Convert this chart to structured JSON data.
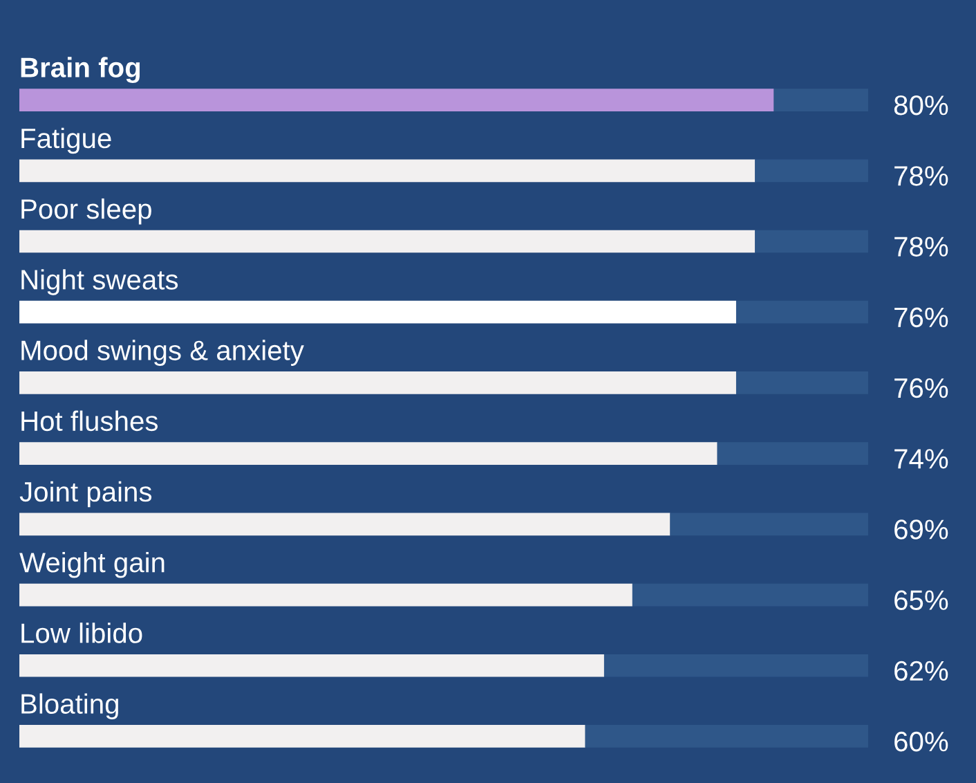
{
  "chart_data": {
    "type": "bar",
    "orientation": "horizontal",
    "stacked": true,
    "categories": [
      "Brain fog",
      "Fatigue",
      "Poor sleep",
      "Night sweats",
      "Mood swings & anxiety",
      "Hot flushes",
      "Joint pains",
      "Weight gain",
      "Low libido",
      "Bloating"
    ],
    "series": [
      {
        "colors": [
          "#b994db",
          "#f2f0f0",
          "#f2f0f0",
          "#ffffff",
          "#f2f0f0",
          "#f2f0f0",
          "#f2f0f0",
          "#f2f0f0",
          "#f2f0f0",
          "#f2f0f0"
        ],
        "values": [
          80,
          78,
          78,
          76,
          76,
          74,
          69,
          65,
          62,
          60
        ],
        "value_labels": [
          "80%",
          "78%",
          "78%",
          "76%",
          "76%",
          "74%",
          "69%",
          "65%",
          "62%",
          "60%"
        ]
      },
      {
        "color": "#2f5789",
        "values": [
          10,
          12,
          12,
          14,
          14,
          16,
          21,
          25,
          28,
          30
        ]
      }
    ],
    "xlim": [
      0,
      90
    ]
  }
}
